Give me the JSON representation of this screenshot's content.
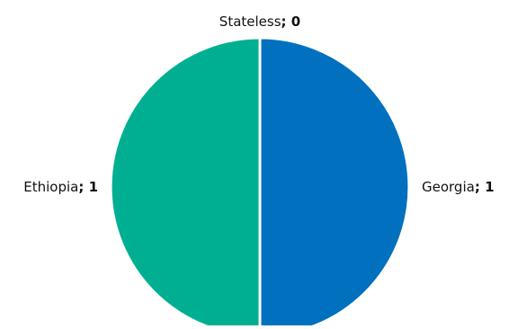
{
  "chart_data": {
    "type": "pie",
    "title": "",
    "categories": [
      "Georgia",
      "Ethiopia",
      "Stateless"
    ],
    "values": [
      1,
      1,
      0
    ],
    "colors": [
      "#0070bf",
      "#00af92",
      "#7f7f7f"
    ],
    "label_separator": "; ",
    "slice_border_color": "#ffffff",
    "legend": "none",
    "start_angle_deg": 0,
    "direction": "clockwise"
  }
}
